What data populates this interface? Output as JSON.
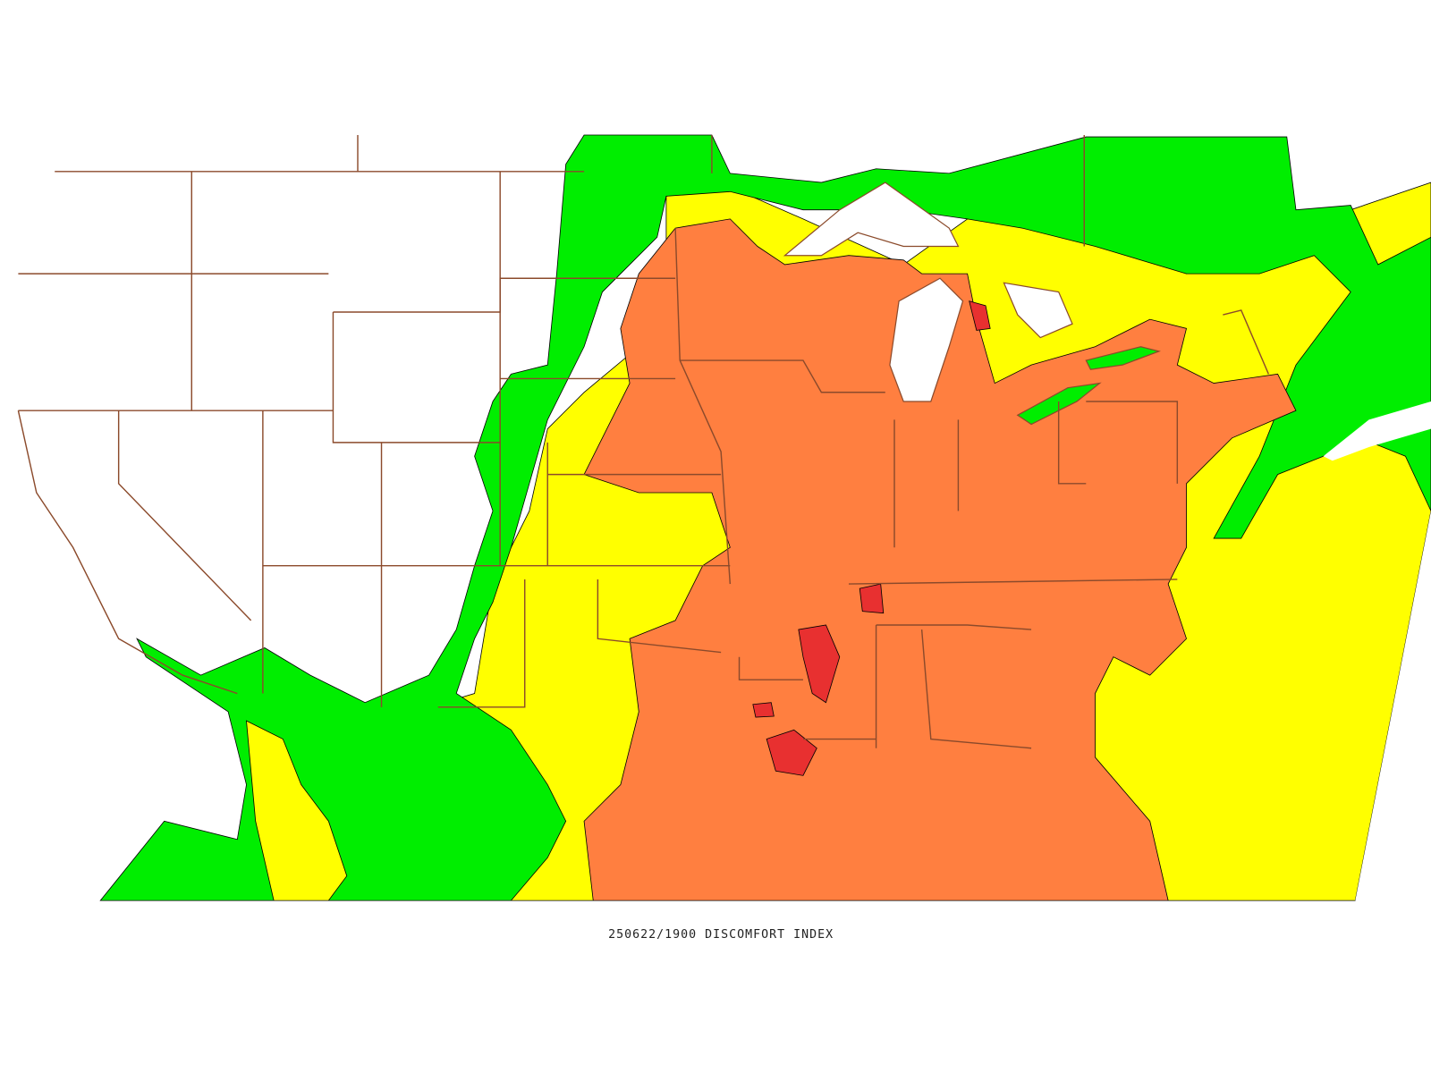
{
  "map": {
    "caption": "250622/1900 DISCOMFORT INDEX"
  }
}
